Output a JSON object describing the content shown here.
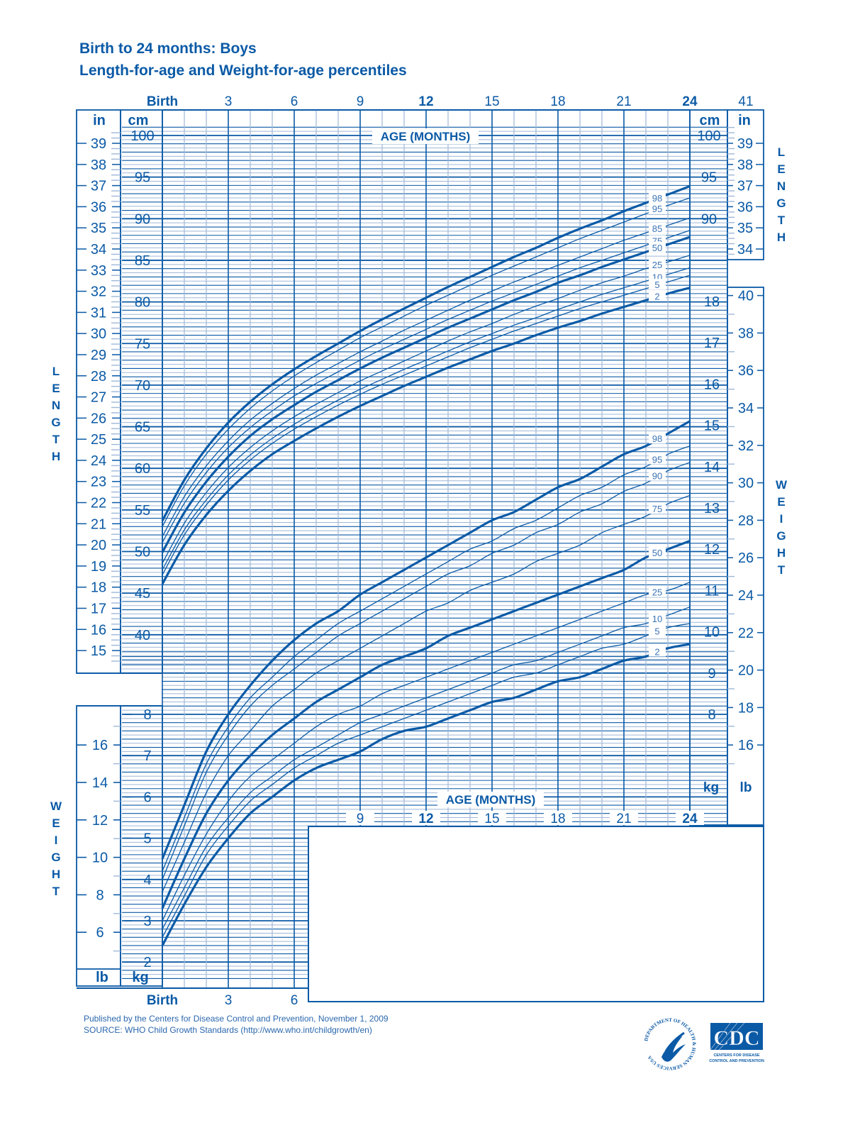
{
  "header": {
    "title_line1": "Birth to 24 months: Boys",
    "title_line2": "Length-for-age and Weight-for-age percentiles"
  },
  "axes": {
    "age_label": "AGE (MONTHS)",
    "top_ticks": [
      "Birth",
      "3",
      "6",
      "9",
      "12",
      "15",
      "18",
      "21",
      "24"
    ],
    "top_extra": "41",
    "bottom_ticks_left": [
      "Birth",
      "3",
      "6"
    ],
    "bottom_ticks_right": [
      "9",
      "12",
      "15",
      "18",
      "21",
      "24"
    ],
    "length_cm_ticks": [
      100,
      95,
      90,
      85,
      80,
      75,
      70,
      65,
      60,
      55,
      50,
      45,
      40
    ],
    "length_in_ticks_left": [
      39,
      38,
      37,
      36,
      35,
      34,
      33,
      32,
      31,
      30,
      29,
      28,
      27,
      26,
      25,
      24,
      23,
      22,
      21,
      20,
      19,
      18,
      17,
      16,
      15
    ],
    "length_in_ticks_right": [
      39,
      38,
      37,
      36,
      35,
      34
    ],
    "weight_kg_ticks_left": [
      8,
      7,
      6,
      5,
      4,
      3,
      2
    ],
    "weight_lb_ticks_left": [
      16,
      14,
      12,
      10,
      8,
      6
    ],
    "weight_kg_ticks_right": [
      18,
      17,
      16,
      15,
      14,
      13,
      12,
      11,
      10,
      9,
      8
    ],
    "weight_lb_ticks_right": [
      40,
      38,
      36,
      34,
      32,
      30,
      28,
      26,
      24,
      22,
      20,
      18,
      16
    ],
    "unit_cm": "cm",
    "unit_in": "in",
    "unit_kg": "kg",
    "unit_lb": "lb",
    "side_length": "LENGTH",
    "side_weight": "WEIGHT"
  },
  "footer": {
    "published": "Published by the Centers for Disease Control and Prevention, November 1, 2009",
    "source": "SOURCE:  WHO Child Growth Standards (http://www.who.int/childgrowth/en)"
  },
  "logos": {
    "hhs": "DEPARTMENT OF HEALTH & HUMAN SERVICES USA",
    "cdc": "CDC",
    "cdc_sub1": "CENTERS FOR DISEASE",
    "cdc_sub2": "CONTROL AND PREVENTION"
  },
  "colors": {
    "primary": "#0b5aa6",
    "grid_major": "#0b5aa6",
    "grid_minor": "#9fb8d8"
  },
  "chart_data": [
    {
      "type": "line",
      "title": "Length-for-age percentiles (Boys, Birth to 24 months)",
      "xlabel": "AGE (MONTHS)",
      "ylabel": "LENGTH (cm / in)",
      "xlim": [
        0,
        24
      ],
      "ylim": [
        40,
        100
      ],
      "x": [
        0,
        1,
        2,
        3,
        4,
        5,
        6,
        7,
        8,
        9,
        10,
        11,
        12,
        13,
        14,
        15,
        16,
        17,
        18,
        19,
        20,
        21,
        22,
        23,
        24
      ],
      "series": [
        {
          "name": "98",
          "values": [
            53.7,
            58.6,
            62.4,
            65.5,
            68.0,
            70.1,
            71.9,
            73.5,
            75.0,
            76.5,
            77.9,
            79.2,
            80.5,
            81.8,
            83.0,
            84.2,
            85.4,
            86.5,
            87.7,
            88.8,
            89.8,
            90.9,
            91.9,
            92.9,
            93.9
          ]
        },
        {
          "name": "95",
          "values": [
            53.0,
            57.9,
            61.7,
            64.7,
            67.2,
            69.3,
            71.1,
            72.7,
            74.2,
            75.7,
            77.0,
            78.3,
            79.6,
            80.8,
            82.0,
            83.2,
            84.3,
            85.4,
            86.5,
            87.6,
            88.6,
            89.6,
            90.6,
            91.6,
            92.5
          ]
        },
        {
          "name": "85",
          "values": [
            51.8,
            56.6,
            60.3,
            63.3,
            65.8,
            67.8,
            69.6,
            71.2,
            72.6,
            74.0,
            75.3,
            76.6,
            77.8,
            79.0,
            80.2,
            81.3,
            82.4,
            83.4,
            84.4,
            85.4,
            86.4,
            87.4,
            88.3,
            89.2,
            90.1
          ]
        },
        {
          "name": "75",
          "values": [
            51.1,
            55.8,
            59.5,
            62.5,
            64.9,
            66.9,
            68.7,
            70.2,
            71.6,
            73.0,
            74.3,
            75.5,
            76.7,
            77.9,
            79.0,
            80.1,
            81.1,
            82.1,
            83.1,
            84.1,
            85.0,
            85.9,
            86.8,
            87.7,
            88.6
          ]
        },
        {
          "name": "50",
          "values": [
            49.9,
            54.7,
            58.4,
            61.4,
            63.9,
            65.9,
            67.6,
            69.2,
            70.6,
            72.0,
            73.3,
            74.5,
            75.7,
            76.9,
            78.0,
            79.1,
            80.2,
            81.2,
            82.3,
            83.2,
            84.2,
            85.1,
            86.0,
            86.9,
            87.8
          ]
        },
        {
          "name": "25",
          "values": [
            48.6,
            53.4,
            57.1,
            60.1,
            62.5,
            64.5,
            66.2,
            67.7,
            69.1,
            70.5,
            71.7,
            72.9,
            74.1,
            75.3,
            76.4,
            77.4,
            78.5,
            79.5,
            80.4,
            81.4,
            82.3,
            83.1,
            84.0,
            84.8,
            85.6
          ]
        },
        {
          "name": "10",
          "values": [
            47.8,
            52.6,
            56.2,
            59.2,
            61.6,
            63.6,
            65.3,
            66.8,
            68.2,
            69.5,
            70.7,
            71.9,
            73.0,
            74.1,
            75.2,
            76.2,
            77.2,
            78.1,
            79.1,
            80.0,
            80.9,
            81.7,
            82.5,
            83.3,
            84.1
          ]
        },
        {
          "name": "5",
          "values": [
            47.2,
            52.0,
            55.6,
            58.6,
            61.0,
            63.0,
            64.7,
            66.2,
            67.6,
            68.9,
            70.1,
            71.2,
            72.3,
            73.4,
            74.5,
            75.5,
            76.5,
            77.4,
            78.3,
            79.2,
            80.0,
            80.8,
            81.6,
            82.4,
            83.2
          ]
        },
        {
          "name": "2",
          "values": [
            46.1,
            50.8,
            54.4,
            57.3,
            59.7,
            61.7,
            63.3,
            64.8,
            66.2,
            67.5,
            68.7,
            69.9,
            71.0,
            72.1,
            73.1,
            74.1,
            75.0,
            76.0,
            76.9,
            77.7,
            78.6,
            79.4,
            80.2,
            81.0,
            81.7
          ]
        }
      ]
    },
    {
      "type": "line",
      "title": "Weight-for-age percentiles (Boys, Birth to 24 months)",
      "xlabel": "AGE (MONTHS)",
      "ylabel": "WEIGHT (kg / lb)",
      "xlim": [
        0,
        24
      ],
      "ylim": [
        1.6,
        18.5
      ],
      "x": [
        0,
        1,
        2,
        3,
        4,
        5,
        6,
        7,
        8,
        9,
        10,
        11,
        12,
        13,
        14,
        15,
        16,
        17,
        18,
        19,
        20,
        21,
        22,
        23,
        24
      ],
      "series": [
        {
          "name": "98",
          "values": [
            4.5,
            5.8,
            7.1,
            8.0,
            8.7,
            9.3,
            9.8,
            10.2,
            10.5,
            10.9,
            11.2,
            11.5,
            11.8,
            12.1,
            12.4,
            12.7,
            12.9,
            13.2,
            13.5,
            13.7,
            14.0,
            14.3,
            14.5,
            14.8,
            15.1
          ]
        },
        {
          "name": "95",
          "values": [
            4.2,
            5.5,
            6.8,
            7.7,
            8.4,
            8.9,
            9.4,
            9.8,
            10.2,
            10.5,
            10.8,
            11.1,
            11.4,
            11.7,
            12.0,
            12.2,
            12.5,
            12.7,
            13.0,
            13.3,
            13.5,
            13.8,
            14.0,
            14.3,
            14.5
          ]
        },
        {
          "name": "90",
          "values": [
            4.0,
            5.3,
            6.6,
            7.5,
            8.2,
            8.7,
            9.1,
            9.5,
            9.9,
            10.2,
            10.5,
            10.8,
            11.1,
            11.4,
            11.6,
            11.9,
            12.1,
            12.4,
            12.6,
            12.9,
            13.1,
            13.4,
            13.6,
            13.9,
            14.1
          ]
        },
        {
          "name": "75",
          "values": [
            3.7,
            4.9,
            6.1,
            7.0,
            7.6,
            8.2,
            8.6,
            9.0,
            9.3,
            9.6,
            9.9,
            10.2,
            10.5,
            10.7,
            11.0,
            11.2,
            11.4,
            11.7,
            11.9,
            12.1,
            12.4,
            12.6,
            12.8,
            13.1,
            13.3
          ]
        },
        {
          "name": "50",
          "values": [
            3.3,
            4.5,
            5.6,
            6.4,
            7.0,
            7.5,
            7.9,
            8.3,
            8.6,
            8.9,
            9.2,
            9.4,
            9.6,
            9.9,
            10.1,
            10.3,
            10.5,
            10.7,
            10.9,
            11.1,
            11.3,
            11.5,
            11.8,
            12.0,
            12.2
          ]
        },
        {
          "name": "25",
          "values": [
            3.0,
            4.1,
            5.1,
            5.9,
            6.5,
            6.9,
            7.3,
            7.7,
            8.0,
            8.2,
            8.5,
            8.7,
            8.9,
            9.1,
            9.3,
            9.5,
            9.7,
            9.9,
            10.1,
            10.3,
            10.5,
            10.7,
            10.9,
            11.0,
            11.2
          ]
        },
        {
          "name": "10",
          "values": [
            2.8,
            3.8,
            4.8,
            5.5,
            6.1,
            6.5,
            6.9,
            7.2,
            7.5,
            7.8,
            8.0,
            8.2,
            8.4,
            8.6,
            8.8,
            9.0,
            9.2,
            9.3,
            9.5,
            9.7,
            9.9,
            10.1,
            10.2,
            10.4,
            10.6
          ]
        },
        {
          "name": "5",
          "values": [
            2.6,
            3.6,
            4.6,
            5.3,
            5.9,
            6.3,
            6.7,
            7.0,
            7.3,
            7.5,
            7.7,
            7.9,
            8.1,
            8.3,
            8.5,
            8.7,
            8.9,
            9.0,
            9.2,
            9.4,
            9.6,
            9.7,
            9.9,
            10.1,
            10.2
          ]
        },
        {
          "name": "2",
          "values": [
            2.4,
            3.4,
            4.3,
            5.0,
            5.6,
            6.0,
            6.4,
            6.7,
            6.9,
            7.1,
            7.4,
            7.6,
            7.7,
            7.9,
            8.1,
            8.3,
            8.4,
            8.6,
            8.8,
            8.9,
            9.1,
            9.3,
            9.4,
            9.6,
            9.7
          ]
        }
      ]
    }
  ]
}
